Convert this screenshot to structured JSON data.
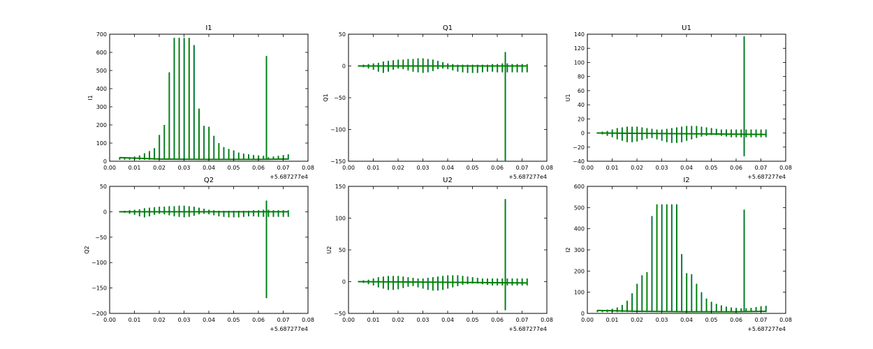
{
  "chart_data": [
    {
      "type": "line",
      "title": "I1",
      "ylabel": "I1",
      "xlim": [
        0.0,
        0.08
      ],
      "ylim": [
        0,
        700
      ],
      "xticks": [
        "0.00",
        "0.01",
        "0.02",
        "0.03",
        "0.04",
        "0.05",
        "0.06",
        "0.07",
        "0.08"
      ],
      "yticks": [
        "0",
        "100",
        "200",
        "300",
        "400",
        "500",
        "600",
        "700"
      ],
      "x_offset_label": "+5.687277e4",
      "colors": [
        "#1f77b4",
        "#008000"
      ],
      "baseline": [
        [
          0.004,
          20
        ],
        [
          0.02,
          12
        ],
        [
          0.04,
          10
        ],
        [
          0.06,
          10
        ],
        [
          0.072,
          12
        ]
      ],
      "spikes": {
        "x": [
          0.004,
          0.006,
          0.008,
          0.01,
          0.012,
          0.014,
          0.016,
          0.018,
          0.02,
          0.022,
          0.024,
          0.026,
          0.028,
          0.03,
          0.032,
          0.034,
          0.036,
          0.038,
          0.04,
          0.042,
          0.044,
          0.046,
          0.048,
          0.05,
          0.052,
          0.054,
          0.056,
          0.058,
          0.06,
          0.062,
          0.0632,
          0.064,
          0.066,
          0.068,
          0.07,
          0.072
        ],
        "high": [
          22,
          20,
          22,
          26,
          32,
          44,
          56,
          72,
          145,
          200,
          490,
          680,
          680,
          680,
          680,
          640,
          290,
          195,
          190,
          140,
          100,
          78,
          68,
          60,
          48,
          42,
          38,
          34,
          32,
          30,
          580,
          22,
          26,
          30,
          34,
          38
        ],
        "low": [
          8,
          8,
          8,
          8,
          8,
          8,
          8,
          8,
          8,
          8,
          8,
          8,
          8,
          8,
          8,
          8,
          8,
          8,
          8,
          8,
          8,
          8,
          8,
          8,
          8,
          8,
          8,
          8,
          8,
          8,
          8,
          8,
          8,
          8,
          8,
          8
        ]
      }
    },
    {
      "type": "line",
      "title": "Q1",
      "ylabel": "Q1",
      "xlim": [
        0.0,
        0.08
      ],
      "ylim": [
        -150,
        50
      ],
      "xticks": [
        "0.00",
        "0.01",
        "0.02",
        "0.03",
        "0.04",
        "0.05",
        "0.06",
        "0.07",
        "0.08"
      ],
      "yticks": [
        "−150",
        "−100",
        "−50",
        "0",
        "50"
      ],
      "x_offset_label": "+5.687277e4",
      "colors": [
        "#1f77b4",
        "#008000"
      ],
      "baseline": [
        [
          0.004,
          0
        ],
        [
          0.072,
          0
        ]
      ],
      "spikes": {
        "x": [
          0.004,
          0.006,
          0.008,
          0.01,
          0.012,
          0.014,
          0.016,
          0.018,
          0.02,
          0.022,
          0.024,
          0.026,
          0.028,
          0.03,
          0.032,
          0.034,
          0.036,
          0.038,
          0.04,
          0.042,
          0.044,
          0.046,
          0.048,
          0.05,
          0.052,
          0.054,
          0.056,
          0.058,
          0.06,
          0.062,
          0.0632,
          0.064,
          0.066,
          0.068,
          0.07,
          0.072
        ],
        "high": [
          1,
          2,
          3,
          4,
          5,
          7,
          8,
          9,
          10,
          10,
          11,
          11,
          12,
          12,
          11,
          10,
          8,
          6,
          4,
          3,
          2,
          2,
          2,
          2,
          2,
          2,
          2,
          3,
          3,
          4,
          22,
          4,
          3,
          3,
          3,
          3
        ],
        "low": [
          -1,
          -2,
          -4,
          -6,
          -9,
          -11,
          -9,
          -6,
          -4,
          -5,
          -7,
          -9,
          -10,
          -11,
          -10,
          -8,
          -5,
          -4,
          -5,
          -7,
          -9,
          -10,
          -11,
          -11,
          -11,
          -10,
          -9,
          -9,
          -10,
          -10,
          -150,
          -10,
          -10,
          -10,
          -10,
          -10
        ]
      }
    },
    {
      "type": "line",
      "title": "U1",
      "ylabel": "U1",
      "xlim": [
        0.0,
        0.08
      ],
      "ylim": [
        -40,
        140
      ],
      "xticks": [
        "0.00",
        "0.01",
        "0.02",
        "0.03",
        "0.04",
        "0.05",
        "0.06",
        "0.07",
        "0.08"
      ],
      "yticks": [
        "−40",
        "−20",
        "0",
        "20",
        "40",
        "60",
        "80",
        "100",
        "120",
        "140"
      ],
      "x_offset_label": "+5.687277e4",
      "colors": [
        "#1f77b4",
        "#008000"
      ],
      "baseline": [
        [
          0.004,
          0
        ],
        [
          0.072,
          -2
        ]
      ],
      "spikes": {
        "x": [
          0.004,
          0.006,
          0.008,
          0.01,
          0.012,
          0.014,
          0.016,
          0.018,
          0.02,
          0.022,
          0.024,
          0.026,
          0.028,
          0.03,
          0.032,
          0.034,
          0.036,
          0.038,
          0.04,
          0.042,
          0.044,
          0.046,
          0.048,
          0.05,
          0.052,
          0.054,
          0.056,
          0.058,
          0.06,
          0.062,
          0.0632,
          0.064,
          0.066,
          0.068,
          0.07,
          0.072
        ],
        "high": [
          1,
          2,
          3,
          5,
          7,
          8,
          9,
          9,
          9,
          8,
          7,
          6,
          5,
          5,
          6,
          7,
          8,
          9,
          10,
          10,
          10,
          9,
          8,
          7,
          6,
          5,
          5,
          5,
          5,
          5,
          137,
          5,
          5,
          5,
          5,
          5
        ],
        "low": [
          -1,
          -2,
          -4,
          -6,
          -9,
          -11,
          -13,
          -13,
          -12,
          -10,
          -8,
          -7,
          -9,
          -11,
          -13,
          -14,
          -14,
          -13,
          -11,
          -9,
          -7,
          -5,
          -4,
          -3,
          -3,
          -4,
          -5,
          -6,
          -6,
          -6,
          -33,
          -6,
          -6,
          -6,
          -6,
          -6
        ]
      }
    },
    {
      "type": "line",
      "title": "Q2",
      "ylabel": "Q2",
      "xlim": [
        0.0,
        0.08
      ],
      "ylim": [
        -200,
        50
      ],
      "xticks": [
        "0.00",
        "0.01",
        "0.02",
        "0.03",
        "0.04",
        "0.05",
        "0.06",
        "0.07",
        "0.08"
      ],
      "yticks": [
        "−200",
        "−150",
        "−100",
        "−50",
        "0",
        "50"
      ],
      "x_offset_label": "+5.687277e4",
      "colors": [
        "#1f77b4",
        "#008000"
      ],
      "baseline": [
        [
          0.004,
          0
        ],
        [
          0.072,
          0
        ]
      ],
      "spikes": {
        "x": [
          0.004,
          0.006,
          0.008,
          0.01,
          0.012,
          0.014,
          0.016,
          0.018,
          0.02,
          0.022,
          0.024,
          0.026,
          0.028,
          0.03,
          0.032,
          0.034,
          0.036,
          0.038,
          0.04,
          0.042,
          0.044,
          0.046,
          0.048,
          0.05,
          0.052,
          0.054,
          0.056,
          0.058,
          0.06,
          0.062,
          0.0632,
          0.064,
          0.066,
          0.068,
          0.07,
          0.072
        ],
        "high": [
          1,
          2,
          3,
          4,
          5,
          7,
          8,
          9,
          10,
          10,
          11,
          11,
          12,
          12,
          11,
          10,
          8,
          6,
          4,
          3,
          2,
          2,
          2,
          2,
          2,
          2,
          2,
          3,
          3,
          4,
          22,
          4,
          3,
          3,
          3,
          3
        ],
        "low": [
          -1,
          -2,
          -4,
          -6,
          -9,
          -11,
          -9,
          -6,
          -4,
          -5,
          -7,
          -9,
          -10,
          -11,
          -10,
          -8,
          -5,
          -4,
          -5,
          -7,
          -9,
          -10,
          -11,
          -11,
          -11,
          -10,
          -9,
          -9,
          -10,
          -10,
          -170,
          -10,
          -10,
          -10,
          -10,
          -10
        ]
      }
    },
    {
      "type": "line",
      "title": "U2",
      "ylabel": "U2",
      "xlim": [
        0.0,
        0.08
      ],
      "ylim": [
        -50,
        150
      ],
      "xticks": [
        "0.00",
        "0.01",
        "0.02",
        "0.03",
        "0.04",
        "0.05",
        "0.06",
        "0.07",
        "0.08"
      ],
      "yticks": [
        "−50",
        "0",
        "50",
        "100",
        "150"
      ],
      "x_offset_label": "+5.687277e4",
      "colors": [
        "#1f77b4",
        "#008000"
      ],
      "baseline": [
        [
          0.004,
          0
        ],
        [
          0.072,
          -2
        ]
      ],
      "spikes": {
        "x": [
          0.004,
          0.006,
          0.008,
          0.01,
          0.012,
          0.014,
          0.016,
          0.018,
          0.02,
          0.022,
          0.024,
          0.026,
          0.028,
          0.03,
          0.032,
          0.034,
          0.036,
          0.038,
          0.04,
          0.042,
          0.044,
          0.046,
          0.048,
          0.05,
          0.052,
          0.054,
          0.056,
          0.058,
          0.06,
          0.062,
          0.0632,
          0.064,
          0.066,
          0.068,
          0.07,
          0.072
        ],
        "high": [
          1,
          2,
          3,
          5,
          7,
          8,
          9,
          9,
          9,
          8,
          7,
          6,
          5,
          5,
          6,
          7,
          8,
          9,
          10,
          10,
          10,
          9,
          8,
          7,
          6,
          5,
          5,
          5,
          5,
          5,
          130,
          5,
          5,
          5,
          5,
          5
        ],
        "low": [
          -1,
          -2,
          -4,
          -6,
          -9,
          -11,
          -13,
          -13,
          -12,
          -10,
          -8,
          -7,
          -9,
          -11,
          -13,
          -14,
          -14,
          -13,
          -11,
          -9,
          -7,
          -5,
          -4,
          -3,
          -3,
          -4,
          -5,
          -6,
          -6,
          -6,
          -45,
          -6,
          -6,
          -6,
          -6,
          -6
        ]
      }
    },
    {
      "type": "line",
      "title": "I2",
      "ylabel": "I2",
      "xlim": [
        0.0,
        0.08
      ],
      "ylim": [
        0,
        600
      ],
      "xticks": [
        "0.00",
        "0.01",
        "0.02",
        "0.03",
        "0.04",
        "0.05",
        "0.06",
        "0.07",
        "0.08"
      ],
      "yticks": [
        "0",
        "100",
        "200",
        "300",
        "400",
        "500",
        "600"
      ],
      "x_offset_label": "+5.687277e4",
      "colors": [
        "#1f77b4",
        "#008000"
      ],
      "baseline": [
        [
          0.004,
          14
        ],
        [
          0.02,
          10
        ],
        [
          0.04,
          8
        ],
        [
          0.06,
          8
        ],
        [
          0.072,
          10
        ]
      ],
      "spikes": {
        "x": [
          0.004,
          0.006,
          0.008,
          0.01,
          0.012,
          0.014,
          0.016,
          0.018,
          0.02,
          0.022,
          0.024,
          0.026,
          0.028,
          0.03,
          0.032,
          0.034,
          0.036,
          0.038,
          0.04,
          0.042,
          0.044,
          0.046,
          0.048,
          0.05,
          0.052,
          0.054,
          0.056,
          0.058,
          0.06,
          0.062,
          0.0632,
          0.064,
          0.066,
          0.068,
          0.07,
          0.072
        ],
        "high": [
          16,
          16,
          18,
          22,
          28,
          40,
          60,
          95,
          140,
          180,
          195,
          460,
          515,
          515,
          515,
          515,
          515,
          280,
          190,
          185,
          140,
          100,
          70,
          55,
          45,
          38,
          32,
          28,
          26,
          24,
          490,
          24,
          26,
          30,
          34,
          36
        ],
        "low": [
          6,
          6,
          6,
          6,
          6,
          6,
          6,
          6,
          6,
          6,
          6,
          6,
          6,
          6,
          6,
          6,
          6,
          6,
          6,
          6,
          6,
          6,
          6,
          6,
          6,
          6,
          6,
          6,
          6,
          6,
          6,
          6,
          6,
          6,
          6,
          6
        ]
      }
    }
  ]
}
